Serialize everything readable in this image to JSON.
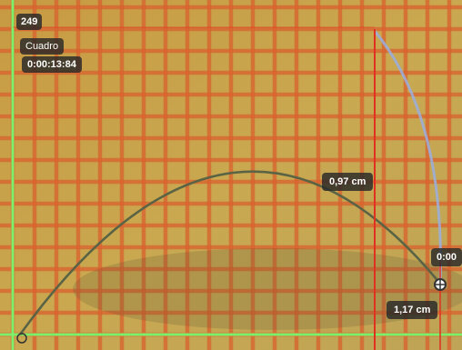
{
  "overlay": {
    "frame_number": "249",
    "frame_label": "Cuadro",
    "time": "0:00:13:84",
    "vertical_distance": "0,97 cm",
    "horizontal_distance": "1,17 cm",
    "partial_label": "0:00"
  },
  "colors": {
    "background": "#c8a24a",
    "grid_line": "#d9622e",
    "axis": "#7cf06a",
    "measure_line": "#e03020",
    "trajectory": "#5f6a4a",
    "track_path": "#9aaee0",
    "tag_bg": "#333333"
  },
  "icons": {
    "point_marker": "crosshair-marker-icon"
  }
}
